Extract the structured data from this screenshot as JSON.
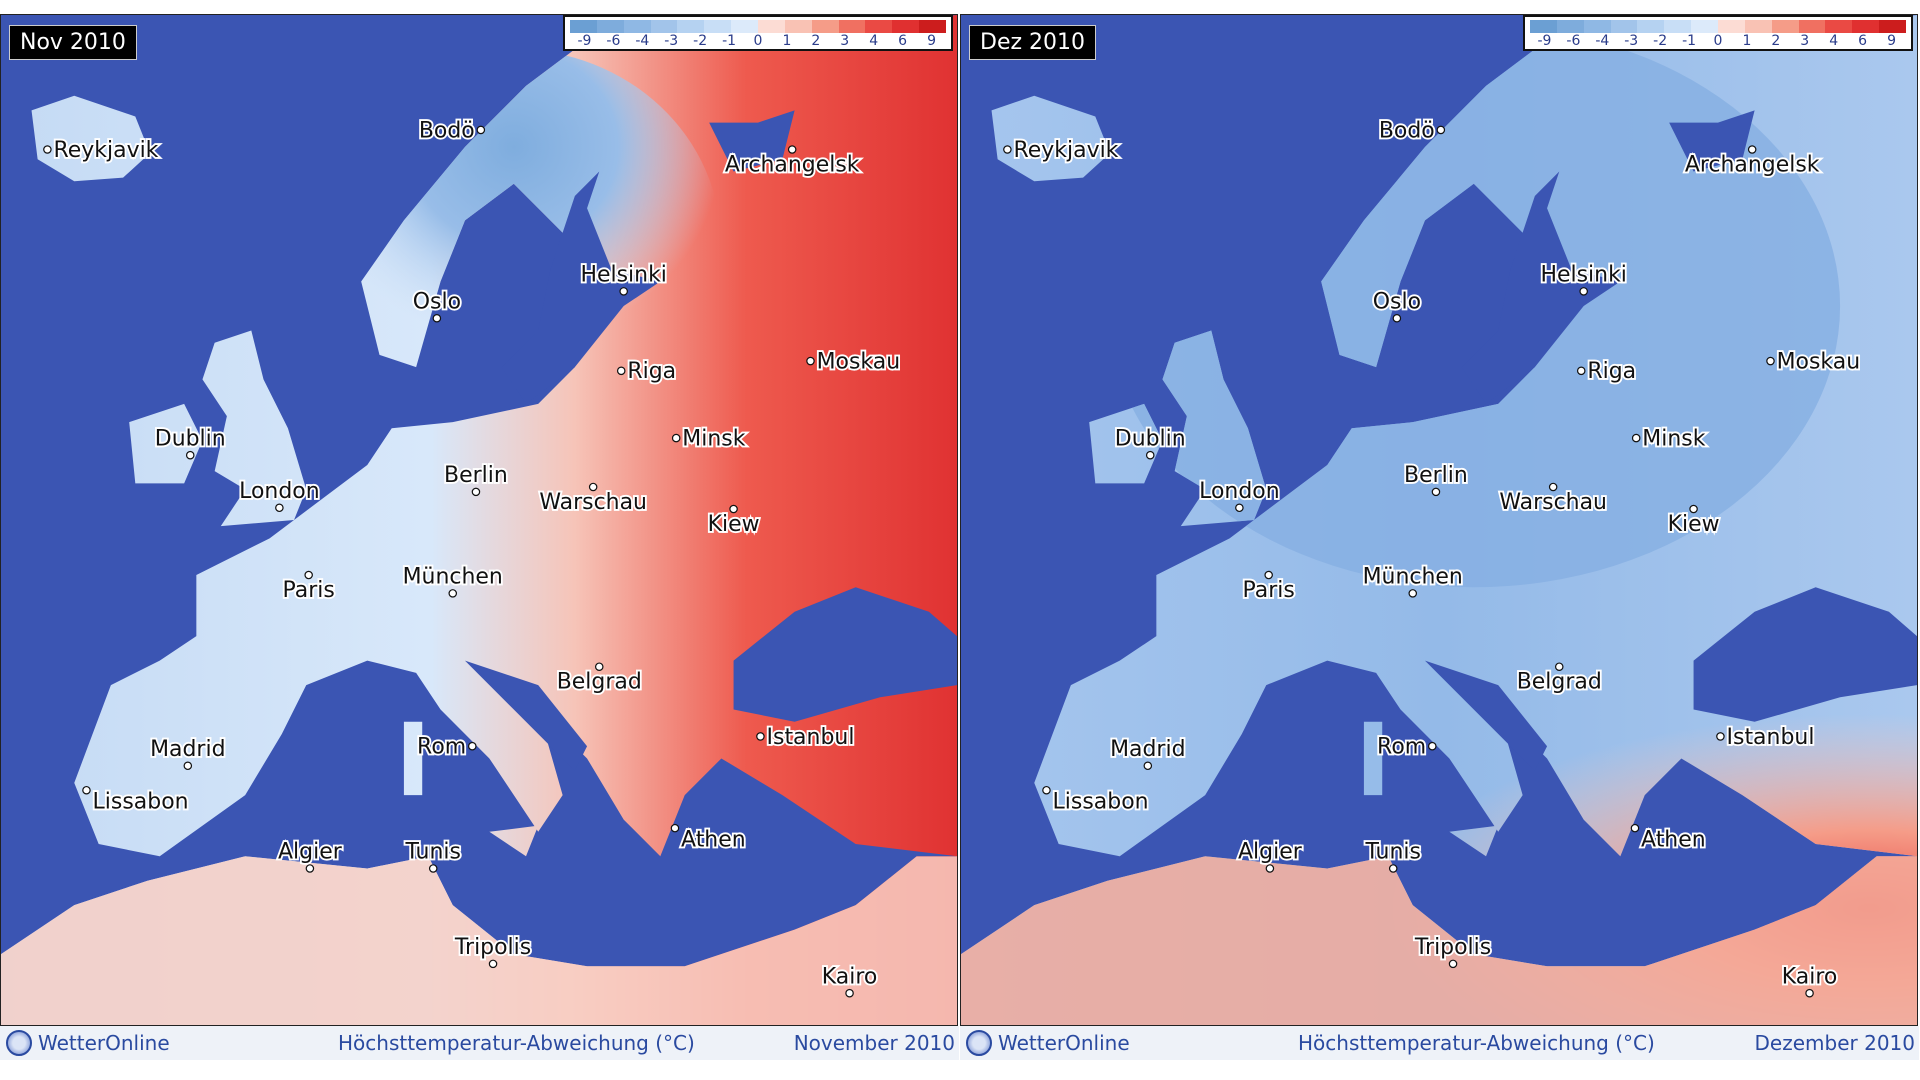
{
  "colors": {
    "sea": "#3b55b3",
    "legend": [
      "#6b9fd3",
      "#7eacdc",
      "#8fb8e4",
      "#a2c4ea",
      "#b5d2f1",
      "#c8def6",
      "#dceafa",
      "#fcdcd4",
      "#f9c2b4",
      "#f59c88",
      "#f07061",
      "#ea4a44",
      "#e03030",
      "#cc1d1d"
    ]
  },
  "legend": {
    "labels": [
      "-9",
      "-6",
      "-4",
      "-3",
      "-2",
      "-1",
      "0",
      "1",
      "2",
      "3",
      "4",
      "6",
      "9"
    ]
  },
  "cities": [
    "Reykjavik",
    "Bodö",
    "Archangelsk",
    "Helsinki",
    "Oslo",
    "Riga",
    "Moskau",
    "Dublin",
    "Minsk",
    "London",
    "Berlin",
    "Warschau",
    "Kiew",
    "Paris",
    "München",
    "Belgrad",
    "Istanbul",
    "Madrid",
    "Rom",
    "Lissabon",
    "Athen",
    "Algier",
    "Tunis",
    "Tripolis",
    "Kairo"
  ],
  "panels": [
    {
      "title": "Nov 2010",
      "footer": {
        "brand": "WetterOnline",
        "description": "Höchsttemperatur-Abweichung (°C)",
        "month": "November 2010"
      },
      "pattern": "warm-east"
    },
    {
      "title": "Dez 2010",
      "footer": {
        "brand": "WetterOnline",
        "description": "Höchsttemperatur-Abweichung (°C)",
        "month": "Dezember 2010"
      },
      "pattern": "cold-north-warm-southeast"
    }
  ]
}
